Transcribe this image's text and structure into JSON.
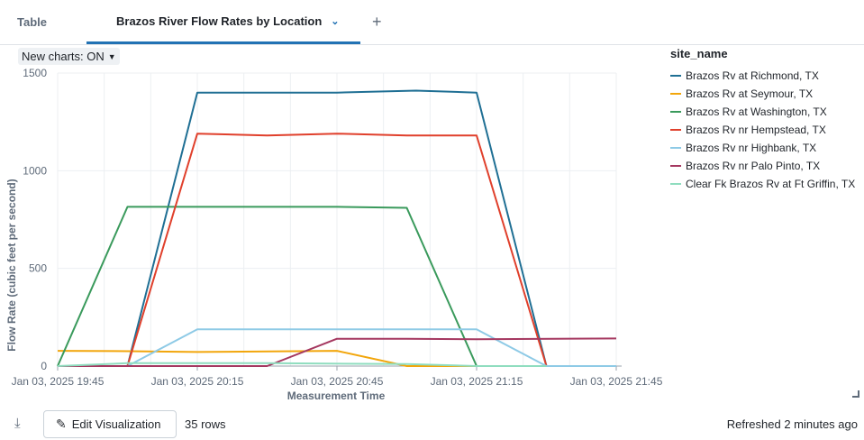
{
  "tabs": {
    "table": "Table",
    "chart": "Brazos River Flow Rates by Location",
    "add": "+"
  },
  "toggle": {
    "label": "New charts: ON"
  },
  "legend_title": "site_name",
  "footer": {
    "edit_label": "Edit Visualization",
    "rows": "35 rows",
    "refreshed": "Refreshed 2 minutes ago"
  },
  "chart_data": {
    "type": "line",
    "xlabel": "Measurement Time",
    "ylabel": "Flow Rate (cubic feet per second)",
    "ylim": [
      0,
      1500
    ],
    "yticks": [
      0,
      500,
      1000,
      1500
    ],
    "x": [
      "19:45",
      "19:55",
      "20:05",
      "20:15",
      "20:25",
      "20:35",
      "20:45",
      "20:55",
      "21:05",
      "21:15",
      "21:25",
      "21:35",
      "21:45"
    ],
    "xtick_labels": [
      {
        "at": "19:45",
        "label": "Jan 03, 2025 19:45"
      },
      {
        "at": "20:15",
        "label": "Jan 03, 2025 20:15"
      },
      {
        "at": "20:45",
        "label": "Jan 03, 2025 20:45"
      },
      {
        "at": "21:15",
        "label": "Jan 03, 2025 21:15"
      },
      {
        "at": "21:45",
        "label": "Jan 03, 2025 21:45"
      }
    ],
    "grid": true,
    "legend_position": "right",
    "series": [
      {
        "name": "Brazos Rv at Richmond, TX",
        "color": "#1f6f94",
        "points": [
          [
            "19:45",
            0
          ],
          [
            "19:55",
            0
          ],
          [
            "20:00",
            0
          ],
          [
            "20:15",
            1400
          ],
          [
            "20:45",
            1400
          ],
          [
            "21:02",
            1410
          ],
          [
            "21:15",
            1400
          ],
          [
            "21:30",
            0
          ]
        ]
      },
      {
        "name": "Brazos Rv at Seymour, TX",
        "color": "#f2a60c",
        "points": [
          [
            "19:45",
            78
          ],
          [
            "20:00",
            76
          ],
          [
            "20:15",
            72
          ],
          [
            "20:45",
            78
          ],
          [
            "21:00",
            0
          ],
          [
            "21:15",
            0
          ],
          [
            "21:30",
            0
          ]
        ]
      },
      {
        "name": "Brazos Rv at Washington, TX",
        "color": "#3a9a5c",
        "points": [
          [
            "19:45",
            0
          ],
          [
            "20:00",
            815
          ],
          [
            "20:45",
            815
          ],
          [
            "21:00",
            810
          ],
          [
            "21:15",
            0
          ],
          [
            "21:30",
            0
          ]
        ]
      },
      {
        "name": "Brazos Rv nr Hempstead, TX",
        "color": "#e0402c",
        "points": [
          [
            "19:45",
            0
          ],
          [
            "20:00",
            0
          ],
          [
            "20:15",
            1190
          ],
          [
            "20:30",
            1180
          ],
          [
            "20:45",
            1190
          ],
          [
            "21:00",
            1180
          ],
          [
            "21:15",
            1180
          ],
          [
            "21:30",
            0
          ]
        ]
      },
      {
        "name": "Brazos Rv nr Highbank, TX",
        "color": "#8ecae6",
        "points": [
          [
            "19:45",
            0
          ],
          [
            "20:00",
            0
          ],
          [
            "20:15",
            188
          ],
          [
            "21:15",
            188
          ],
          [
            "21:30",
            0
          ],
          [
            "21:45",
            0
          ]
        ]
      },
      {
        "name": "Brazos Rv nr Palo Pinto, TX",
        "color": "#a53860",
        "points": [
          [
            "19:45",
            0
          ],
          [
            "20:00",
            0
          ],
          [
            "20:15",
            0
          ],
          [
            "20:30",
            0
          ],
          [
            "20:45",
            140
          ],
          [
            "21:00",
            140
          ],
          [
            "21:15",
            137
          ],
          [
            "21:45",
            141
          ]
        ]
      },
      {
        "name": "Clear Fk Brazos Rv at Ft Griffin, TX",
        "color": "#8fddbf",
        "points": [
          [
            "19:45",
            0
          ],
          [
            "20:00",
            15
          ],
          [
            "20:30",
            15
          ],
          [
            "21:00",
            10
          ],
          [
            "21:15",
            0
          ],
          [
            "21:30",
            0
          ]
        ]
      }
    ]
  }
}
